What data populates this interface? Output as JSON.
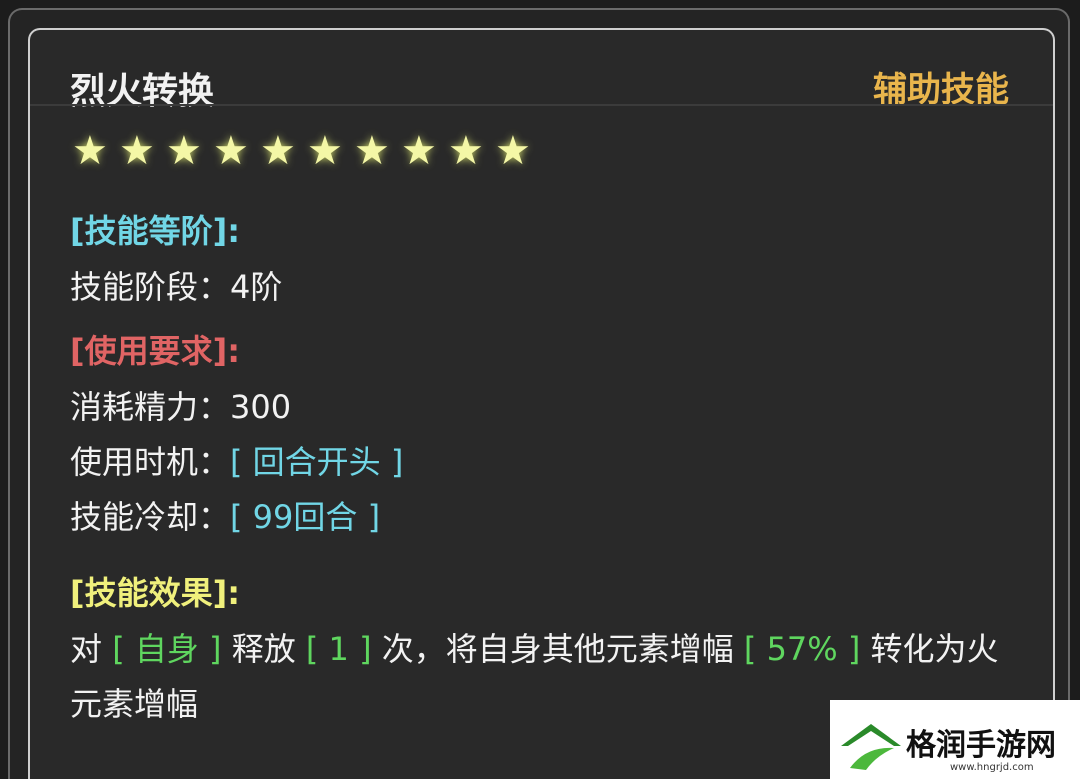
{
  "header": {
    "title": "烈火转换",
    "skill_type": "辅助技能",
    "stars": 10
  },
  "sections": [
    {
      "heading": "[技能等阶]:",
      "rows": [
        {
          "label": "技能阶段：",
          "value": "4阶"
        }
      ]
    },
    {
      "heading": "[使用要求]:",
      "rows": [
        {
          "label": "消耗精力：",
          "value": "300"
        },
        {
          "label": "使用时机：",
          "value": "[ 回合开头 ]"
        },
        {
          "label": "技能冷却：",
          "value": "[ 99回合 ]"
        }
      ]
    },
    {
      "heading": "[技能效果]:",
      "segments": [
        "对 ",
        "[ 自身 ]",
        " 释放 ",
        "[ 1 ]",
        " 次，将自身其他元素增幅 ",
        "[ 57% ]",
        " 转化为火元素增幅"
      ]
    }
  ],
  "watermark": {
    "name": "格润手游网",
    "url": "www.hngrjd.com"
  }
}
